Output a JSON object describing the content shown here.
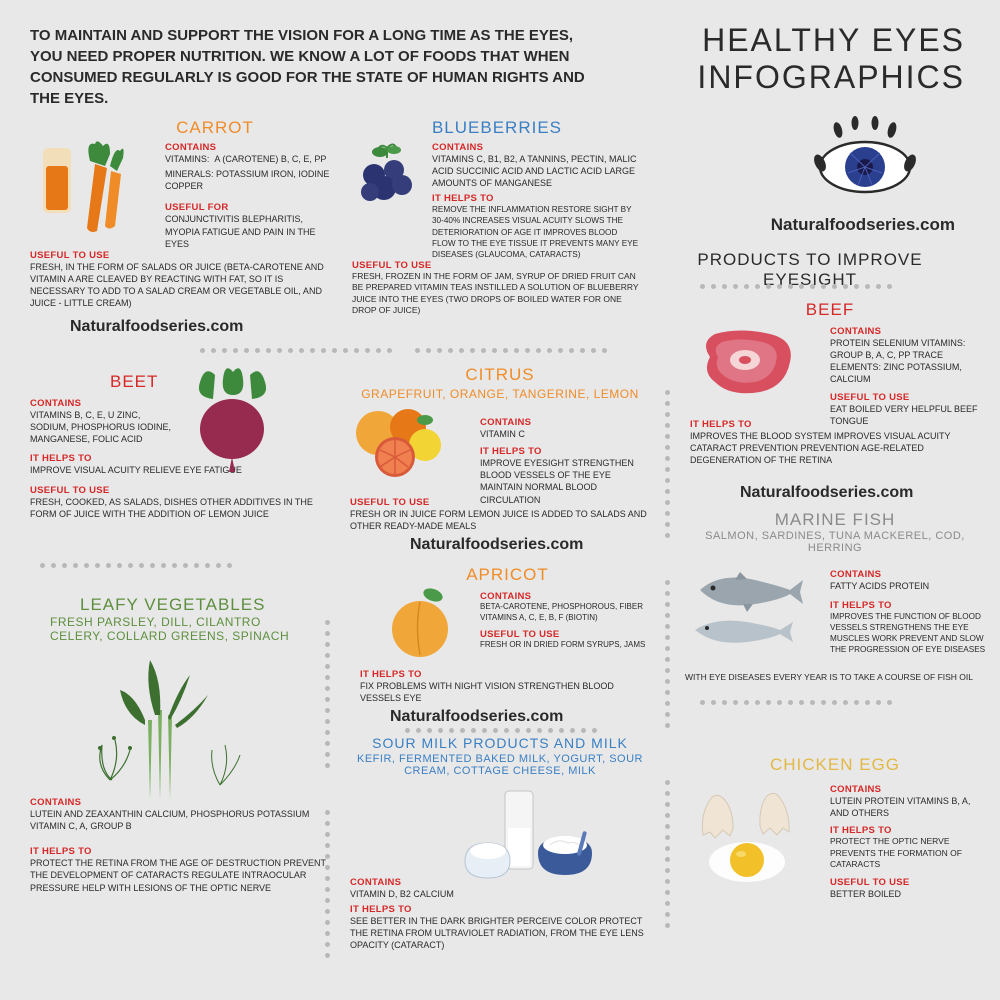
{
  "intro": "TO MAINTAIN AND SUPPORT THE VISION FOR A LONG TIME AS THE EYES, YOU NEED PROPER NUTRITION. WE KNOW A LOT OF FOODS THAT WHEN CONSUMED REGULARLY IS GOOD FOR THE STATE OF HUMAN RIGHTS AND THE EYES.",
  "main_title": "HEALTHY EYES INFOGRAPHICS",
  "subtitle": "PRODUCTS TO IMPROVE EYESIGHT",
  "brand": "Naturalfoodseries.com",
  "labels": {
    "contains": "CONTAINS",
    "useful_for": "USEFUL FOR",
    "useful_to_use": "USEFUL TO USE",
    "it_helps_to": "IT HELPS TO",
    "it_helps_to2": "IT HELPS  TO"
  },
  "carrot": {
    "title": "CARROT",
    "vitamins_lbl": "VITAMINS:",
    "vitamins": "A (CAROTENE) B, C, E, PP",
    "minerals_lbl": "MINERALS:",
    "minerals": "POTASSIUM IRON, IODINE COPPER",
    "useful_for": "CONJUNCTIVITIS BLEPHARITIS, MYOPIA FATIGUE AND PAIN IN THE EYES",
    "use": "FRESH, IN THE FORM OF SALADS OR JUICE (BETA-CAROTENE AND VITAMIN A ARE CLEAVED BY REACTING WITH FAT, SO IT IS NECESSARY TO ADD TO A SALAD CREAM OR VEGETABLE OIL, AND JUICE - LITTLE CREAM)"
  },
  "blueberries": {
    "title": "BLUEBERRIES",
    "contains": "VITAMINS C, B1, B2, A TANNINS, PECTIN, MALIC ACID SUCCINIC ACID AND LACTIC ACID LARGE AMOUNTS OF MANGANESE",
    "helps": "REMOVE THE INFLAMMATION RESTORE SIGHT BY 30-40% INCREASES VISUAL ACUITY SLOWS THE DETERIORATION OF AGE IT IMPROVES BLOOD FLOW TO THE EYE TISSUE IT PREVENTS MANY EYE DISEASES (GLAUCOMA, CATARACTS)",
    "use": "FRESH, FROZEN IN THE FORM OF JAM, SYRUP OF DRIED FRUIT CAN BE PREPARED VITAMIN TEAS INSTILLED A SOLUTION OF BLUEBERRY JUICE INTO THE EYES (TWO DROPS OF BOILED WATER FOR ONE DROP OF JUICE)"
  },
  "beet": {
    "title": "BEET",
    "contains": "VITAMINS B, C, E, U ZINC, SODIUM, PHOSPHORUS IODINE, MANGANESE, FOLIC ACID",
    "helps": "IMPROVE VISUAL ACUITY RELIEVE EYE FATIGUE",
    "use": "FRESH, COOKED, AS SALADS, DISHES OTHER ADDITIVES IN THE FORM OF JUICE WITH THE ADDITION OF LEMON JUICE"
  },
  "citrus": {
    "title": "CITRUS",
    "sub": "GRAPEFRUIT, ORANGE, TANGERINE, LEMON",
    "contains": "VITAMIN C",
    "helps": "IMPROVE EYESIGHT STRENGTHEN BLOOD VESSELS OF THE EYE MAINTAIN NORMAL BLOOD CIRCULATION",
    "use": "FRESH OR IN JUICE FORM LEMON JUICE IS ADDED TO SALADS AND OTHER READY-MADE MEALS"
  },
  "beef": {
    "title": "BEEF",
    "contains": "PROTEIN SELENIUM VITAMINS: GROUP B, A, C, PP TRACE ELEMENTS: ZINC POTASSIUM, CALCIUM",
    "helps": "IMPROVES THE BLOOD SYSTEM IMPROVES VISUAL ACUITY CATARACT PREVENTION PREVENTION AGE-RELATED DEGENERATION OF THE RETINA",
    "use": "EAT BOILED VERY HELPFUL BEEF TONGUE"
  },
  "leafy": {
    "title": "LEAFY VEGETABLES",
    "sub": "FRESH PARSLEY, DILL, CILANTRO CELERY, COLLARD GREENS, SPINACH",
    "contains": "LUTEIN AND ZEAXANTHIN CALCIUM, PHOSPHORUS POTASSIUM VITAMIN C, A, GROUP B",
    "helps": "PROTECT THE RETINA FROM THE AGE OF DESTRUCTION PREVENT THE DEVELOPMENT OF CATARACTS REGULATE INTRAOCULAR PRESSURE HELP WITH LESIONS OF THE OPTIC NERVE"
  },
  "apricot": {
    "title": "APRICOT",
    "contains": "BETA-CAROTENE, PHOSPHOROUS, FIBER VITAMINS A, C, E, B, F (BIOTIN)",
    "use": "FRESH OR IN DRIED FORM SYRUPS, JAMS",
    "helps": "FIX PROBLEMS WITH NIGHT VISION STRENGTHEN BLOOD VESSELS EYE"
  },
  "milk": {
    "title": "SOUR MILK PRODUCTS AND MILK",
    "sub": "KEFIR, FERMENTED BAKED MILK, YOGURT, SOUR CREAM, COTTAGE CHEESE,  MILK",
    "contains": "VITAMIN D, B2 CALCIUM",
    "helps": "SEE BETTER IN THE DARK BRIGHTER PERCEIVE COLOR PROTECT THE RETINA FROM ULTRAVIOLET RADIATION, FROM THE EYE LENS OPACITY (CATARACT)"
  },
  "fish": {
    "title": "MARINE FISH",
    "sub": "SALMON, SARDINES, TUNA MACKEREL, COD, HERRING",
    "contains": "FATTY ACIDS PROTEIN",
    "helps": "IMPROVES THE FUNCTION OF BLOOD VESSELS STRENGTHENS THE EYE MUSCLES WORK PREVENT AND SLOW THE PROGRESSION OF EYE DISEASES",
    "note": "WITH EYE DISEASES EVERY YEAR IS TO TAKE A COURSE OF FISH OIL"
  },
  "egg": {
    "title": "CHICKEN EGG",
    "contains": "LUTEIN PROTEIN VITAMINS B, A, AND OTHERS",
    "helps": "PROTECT THE OPTIC NERVE PREVENTS THE FORMATION OF CATARACTS",
    "use": "BETTER BOILED"
  },
  "colors": {
    "orange": "#f08c28",
    "blue": "#3a7fc4",
    "red": "#d62828",
    "green": "#5d8f3e",
    "grey": "#8a8a8a",
    "yellow": "#e3b844",
    "dark_blue": "#2b3f8f",
    "carrot": "#e67817",
    "beet": "#972b4f",
    "beet_leaf": "#3d8a3d",
    "apricot": "#f0a638",
    "egg_yolk": "#f2c029"
  }
}
